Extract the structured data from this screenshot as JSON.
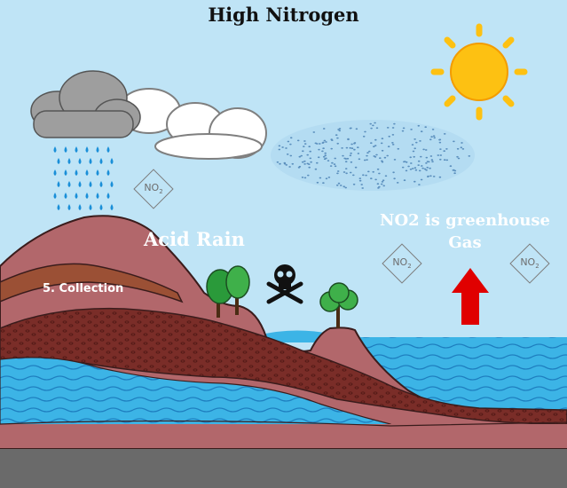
{
  "title": "High Nitrogen",
  "labels": {
    "acid_rain": "Acid Rain",
    "collection": "5. Collection",
    "greenhouse_line1": "NO2 is greenhouse",
    "greenhouse_line2": "Gas"
  },
  "no2_symbol": {
    "base": "NO",
    "subscript": "2"
  },
  "icons": [
    "sun-icon",
    "rain-cloud-icon",
    "cloud-icon",
    "pollution-haze",
    "skull-crossbones-icon",
    "tree-icon",
    "up-arrow-icon"
  ],
  "colors": {
    "sky": "#bfe4f6",
    "water": "#3cb4e6",
    "soil_pink": "#b2676b",
    "soil_dark": "#7a2d28",
    "bedrock": "#6a6a6a",
    "sun": "#fdc112",
    "arrow": "#e00000",
    "rain": "#1a8fd8"
  }
}
